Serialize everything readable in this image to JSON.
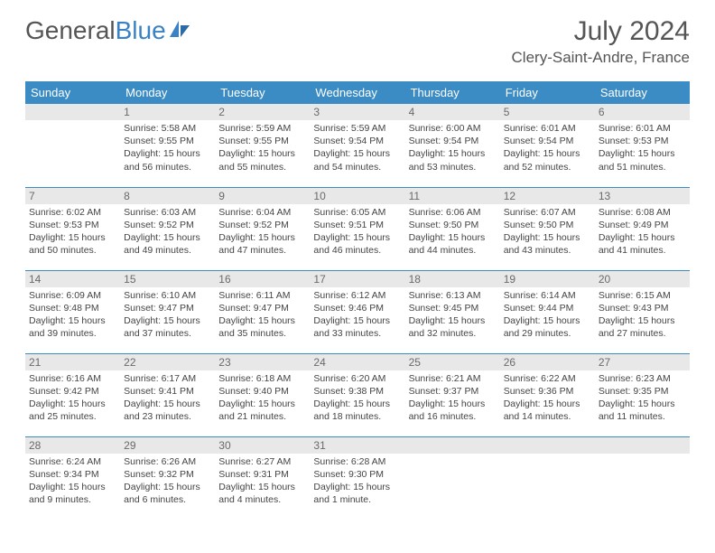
{
  "logo": {
    "part1": "General",
    "part2": "Blue"
  },
  "title": "July 2024",
  "location": "Clery-Saint-Andre, France",
  "colors": {
    "header_bg": "#3b8bc4",
    "header_text": "#ffffff",
    "daynum_bg": "#e8e8e8",
    "daynum_text": "#6a6a6a",
    "body_text": "#444444",
    "border": "#3b8bc4",
    "logo_gray": "#555555",
    "logo_blue": "#3b82c4"
  },
  "weekdays": [
    "Sunday",
    "Monday",
    "Tuesday",
    "Wednesday",
    "Thursday",
    "Friday",
    "Saturday"
  ],
  "weeks": [
    [
      {
        "day": "",
        "sunrise": "",
        "sunset": "",
        "daylight": ""
      },
      {
        "day": "1",
        "sunrise": "Sunrise: 5:58 AM",
        "sunset": "Sunset: 9:55 PM",
        "daylight": "Daylight: 15 hours and 56 minutes."
      },
      {
        "day": "2",
        "sunrise": "Sunrise: 5:59 AM",
        "sunset": "Sunset: 9:55 PM",
        "daylight": "Daylight: 15 hours and 55 minutes."
      },
      {
        "day": "3",
        "sunrise": "Sunrise: 5:59 AM",
        "sunset": "Sunset: 9:54 PM",
        "daylight": "Daylight: 15 hours and 54 minutes."
      },
      {
        "day": "4",
        "sunrise": "Sunrise: 6:00 AM",
        "sunset": "Sunset: 9:54 PM",
        "daylight": "Daylight: 15 hours and 53 minutes."
      },
      {
        "day": "5",
        "sunrise": "Sunrise: 6:01 AM",
        "sunset": "Sunset: 9:54 PM",
        "daylight": "Daylight: 15 hours and 52 minutes."
      },
      {
        "day": "6",
        "sunrise": "Sunrise: 6:01 AM",
        "sunset": "Sunset: 9:53 PM",
        "daylight": "Daylight: 15 hours and 51 minutes."
      }
    ],
    [
      {
        "day": "7",
        "sunrise": "Sunrise: 6:02 AM",
        "sunset": "Sunset: 9:53 PM",
        "daylight": "Daylight: 15 hours and 50 minutes."
      },
      {
        "day": "8",
        "sunrise": "Sunrise: 6:03 AM",
        "sunset": "Sunset: 9:52 PM",
        "daylight": "Daylight: 15 hours and 49 minutes."
      },
      {
        "day": "9",
        "sunrise": "Sunrise: 6:04 AM",
        "sunset": "Sunset: 9:52 PM",
        "daylight": "Daylight: 15 hours and 47 minutes."
      },
      {
        "day": "10",
        "sunrise": "Sunrise: 6:05 AM",
        "sunset": "Sunset: 9:51 PM",
        "daylight": "Daylight: 15 hours and 46 minutes."
      },
      {
        "day": "11",
        "sunrise": "Sunrise: 6:06 AM",
        "sunset": "Sunset: 9:50 PM",
        "daylight": "Daylight: 15 hours and 44 minutes."
      },
      {
        "day": "12",
        "sunrise": "Sunrise: 6:07 AM",
        "sunset": "Sunset: 9:50 PM",
        "daylight": "Daylight: 15 hours and 43 minutes."
      },
      {
        "day": "13",
        "sunrise": "Sunrise: 6:08 AM",
        "sunset": "Sunset: 9:49 PM",
        "daylight": "Daylight: 15 hours and 41 minutes."
      }
    ],
    [
      {
        "day": "14",
        "sunrise": "Sunrise: 6:09 AM",
        "sunset": "Sunset: 9:48 PM",
        "daylight": "Daylight: 15 hours and 39 minutes."
      },
      {
        "day": "15",
        "sunrise": "Sunrise: 6:10 AM",
        "sunset": "Sunset: 9:47 PM",
        "daylight": "Daylight: 15 hours and 37 minutes."
      },
      {
        "day": "16",
        "sunrise": "Sunrise: 6:11 AM",
        "sunset": "Sunset: 9:47 PM",
        "daylight": "Daylight: 15 hours and 35 minutes."
      },
      {
        "day": "17",
        "sunrise": "Sunrise: 6:12 AM",
        "sunset": "Sunset: 9:46 PM",
        "daylight": "Daylight: 15 hours and 33 minutes."
      },
      {
        "day": "18",
        "sunrise": "Sunrise: 6:13 AM",
        "sunset": "Sunset: 9:45 PM",
        "daylight": "Daylight: 15 hours and 32 minutes."
      },
      {
        "day": "19",
        "sunrise": "Sunrise: 6:14 AM",
        "sunset": "Sunset: 9:44 PM",
        "daylight": "Daylight: 15 hours and 29 minutes."
      },
      {
        "day": "20",
        "sunrise": "Sunrise: 6:15 AM",
        "sunset": "Sunset: 9:43 PM",
        "daylight": "Daylight: 15 hours and 27 minutes."
      }
    ],
    [
      {
        "day": "21",
        "sunrise": "Sunrise: 6:16 AM",
        "sunset": "Sunset: 9:42 PM",
        "daylight": "Daylight: 15 hours and 25 minutes."
      },
      {
        "day": "22",
        "sunrise": "Sunrise: 6:17 AM",
        "sunset": "Sunset: 9:41 PM",
        "daylight": "Daylight: 15 hours and 23 minutes."
      },
      {
        "day": "23",
        "sunrise": "Sunrise: 6:18 AM",
        "sunset": "Sunset: 9:40 PM",
        "daylight": "Daylight: 15 hours and 21 minutes."
      },
      {
        "day": "24",
        "sunrise": "Sunrise: 6:20 AM",
        "sunset": "Sunset: 9:38 PM",
        "daylight": "Daylight: 15 hours and 18 minutes."
      },
      {
        "day": "25",
        "sunrise": "Sunrise: 6:21 AM",
        "sunset": "Sunset: 9:37 PM",
        "daylight": "Daylight: 15 hours and 16 minutes."
      },
      {
        "day": "26",
        "sunrise": "Sunrise: 6:22 AM",
        "sunset": "Sunset: 9:36 PM",
        "daylight": "Daylight: 15 hours and 14 minutes."
      },
      {
        "day": "27",
        "sunrise": "Sunrise: 6:23 AM",
        "sunset": "Sunset: 9:35 PM",
        "daylight": "Daylight: 15 hours and 11 minutes."
      }
    ],
    [
      {
        "day": "28",
        "sunrise": "Sunrise: 6:24 AM",
        "sunset": "Sunset: 9:34 PM",
        "daylight": "Daylight: 15 hours and 9 minutes."
      },
      {
        "day": "29",
        "sunrise": "Sunrise: 6:26 AM",
        "sunset": "Sunset: 9:32 PM",
        "daylight": "Daylight: 15 hours and 6 minutes."
      },
      {
        "day": "30",
        "sunrise": "Sunrise: 6:27 AM",
        "sunset": "Sunset: 9:31 PM",
        "daylight": "Daylight: 15 hours and 4 minutes."
      },
      {
        "day": "31",
        "sunrise": "Sunrise: 6:28 AM",
        "sunset": "Sunset: 9:30 PM",
        "daylight": "Daylight: 15 hours and 1 minute."
      },
      {
        "day": "",
        "sunrise": "",
        "sunset": "",
        "daylight": ""
      },
      {
        "day": "",
        "sunrise": "",
        "sunset": "",
        "daylight": ""
      },
      {
        "day": "",
        "sunrise": "",
        "sunset": "",
        "daylight": ""
      }
    ]
  ]
}
